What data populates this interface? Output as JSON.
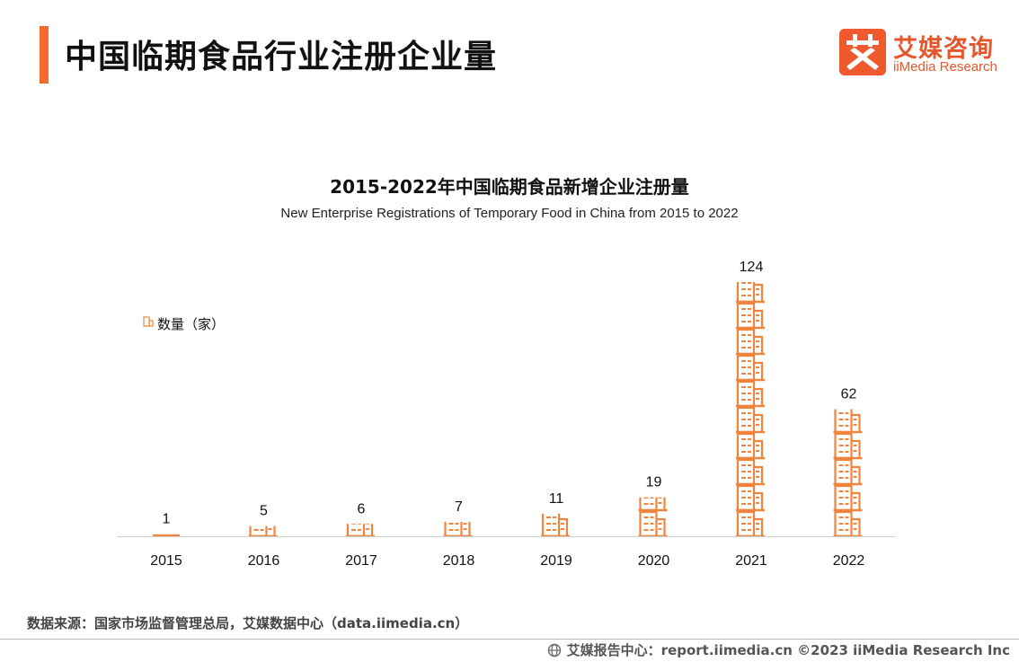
{
  "page": {
    "title": "中国临期食品行业注册企业量"
  },
  "logo": {
    "cn": "艾媒咨询",
    "en": "iiMedia Research",
    "accent": "#ee5a2e"
  },
  "chart_data": {
    "type": "bar",
    "title": "2015-2022年中国临期食品新增企业注册量",
    "subtitle": "New Enterprise Registrations of Temporary Food in China from 2015 to 2022",
    "categories": [
      "2015",
      "2016",
      "2017",
      "2018",
      "2019",
      "2020",
      "2021",
      "2022"
    ],
    "series": [
      {
        "name": "数量（家）",
        "values": [
          1,
          5,
          6,
          7,
          11,
          19,
          124,
          62
        ]
      }
    ],
    "data_labels": [
      "1",
      "5",
      "6",
      "7",
      "11",
      "19",
      "124",
      "62"
    ],
    "legend_position": "top-left",
    "xlabel": "",
    "ylabel": "",
    "ylim": [
      0,
      124
    ],
    "grid": false,
    "bar_style": "stacked building pictograms",
    "bar_color": "#f0843c"
  },
  "source": "数据来源：国家市场监督管理总局，艾媒数据中心（data.iimedia.cn）",
  "footer": {
    "text": "艾媒报告中心：report.iimedia.cn   ©2023  iiMedia Research  Inc"
  }
}
